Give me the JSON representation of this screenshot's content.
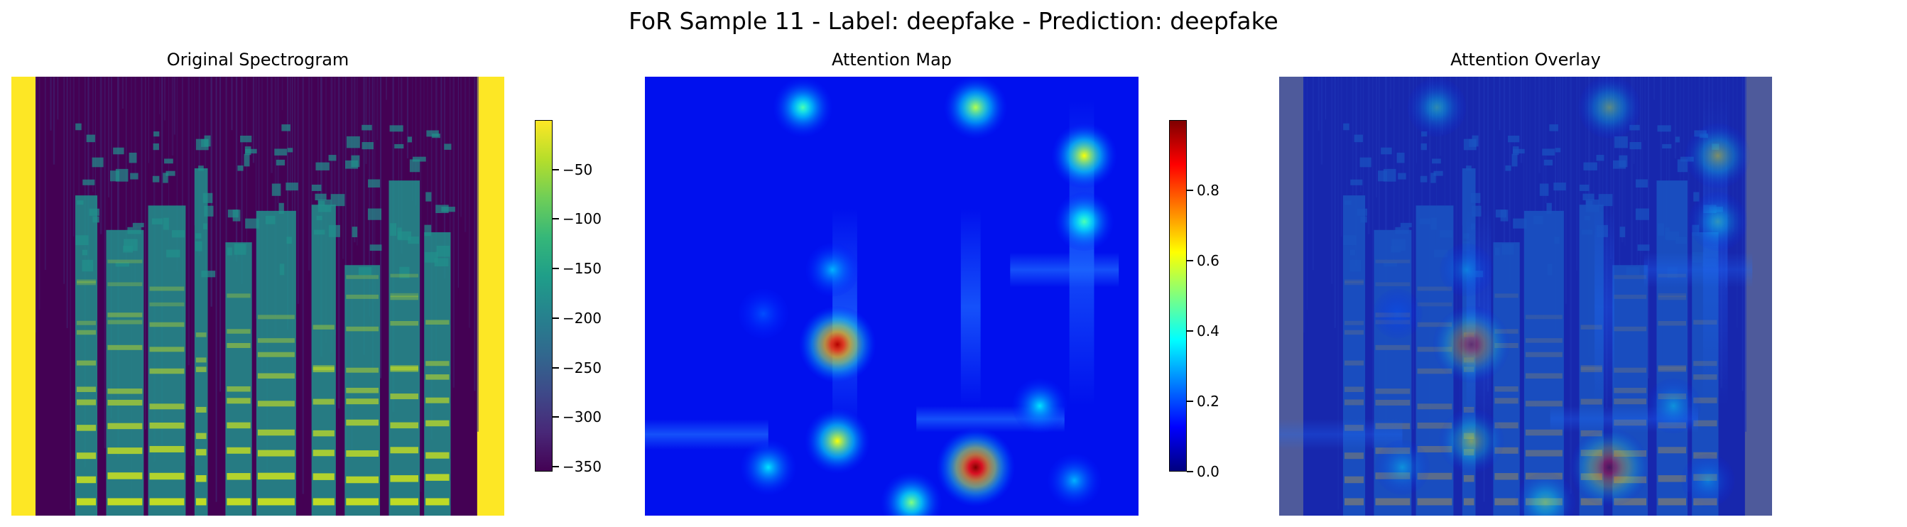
{
  "title": "FoR Sample 11 - Label: deepfake - Prediction: deepfake",
  "chart_data": [
    {
      "type": "heatmap",
      "title": "Original Spectrogram",
      "colormap": "viridis",
      "colorbar": {
        "ticks": [
          -50,
          -100,
          -150,
          -200,
          -250,
          -300,
          -350
        ],
        "tick_labels": [
          "−50",
          "−100",
          "−150",
          "−200",
          "−250",
          "−300",
          "−350"
        ],
        "range": [
          -355,
          0
        ]
      },
      "axes": "off"
    },
    {
      "type": "heatmap",
      "title": "Attention Map",
      "colormap": "jet",
      "colorbar": {
        "ticks": [
          0.0,
          0.2,
          0.4,
          0.6,
          0.8
        ],
        "tick_labels": [
          "0.0",
          "0.2",
          "0.4",
          "0.6",
          "0.8"
        ],
        "range": [
          0,
          1
        ]
      },
      "axes": "off",
      "hotspots": [
        {
          "x": 0.32,
          "y": 0.07,
          "value": 0.45
        },
        {
          "x": 0.67,
          "y": 0.07,
          "value": 0.55
        },
        {
          "x": 0.89,
          "y": 0.18,
          "value": 0.62
        },
        {
          "x": 0.89,
          "y": 0.33,
          "value": 0.45
        },
        {
          "x": 0.38,
          "y": 0.44,
          "value": 0.3
        },
        {
          "x": 0.24,
          "y": 0.54,
          "value": 0.2
        },
        {
          "x": 0.39,
          "y": 0.61,
          "value": 0.95
        },
        {
          "x": 0.8,
          "y": 0.75,
          "value": 0.35
        },
        {
          "x": 0.39,
          "y": 0.83,
          "value": 0.62
        },
        {
          "x": 0.25,
          "y": 0.89,
          "value": 0.35
        },
        {
          "x": 0.67,
          "y": 0.89,
          "value": 1.0
        },
        {
          "x": 0.54,
          "y": 0.97,
          "value": 0.5
        },
        {
          "x": 0.87,
          "y": 0.92,
          "value": 0.3
        }
      ]
    },
    {
      "type": "heatmap",
      "title": "Attention Overlay",
      "colormap": "jet over viridis",
      "axes": "off"
    }
  ],
  "colors": {
    "viridis_low": "#440154",
    "viridis_mid": "#21918c",
    "viridis_high": "#fde725",
    "jet_low": "#00007f",
    "jet_high": "#7f0000"
  }
}
